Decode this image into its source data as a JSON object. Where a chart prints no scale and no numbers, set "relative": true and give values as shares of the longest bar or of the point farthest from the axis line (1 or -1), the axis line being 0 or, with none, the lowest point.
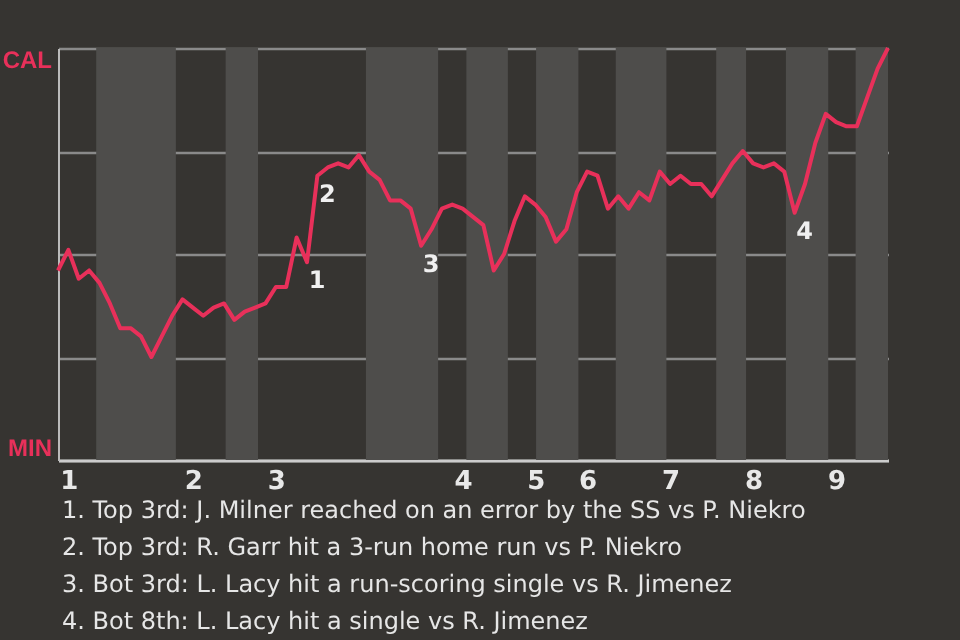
{
  "chart_data": {
    "type": "line",
    "categories": [
      null,
      "1",
      null,
      null,
      null,
      null,
      null,
      null,
      null,
      null,
      null,
      null,
      null,
      "2",
      null,
      null,
      null,
      null,
      null,
      null,
      null,
      "3",
      null,
      null,
      null,
      null,
      null,
      null,
      null,
      null,
      null,
      null,
      null,
      null,
      null,
      null,
      null,
      null,
      null,
      "4",
      null,
      null,
      null,
      null,
      null,
      null,
      "5",
      null,
      null,
      null,
      null,
      "6",
      null,
      null,
      null,
      null,
      null,
      null,
      null,
      "7",
      null,
      null,
      null,
      null,
      null,
      null,
      null,
      "8",
      null,
      null,
      null,
      null,
      null,
      null,
      null,
      "9",
      null,
      null,
      null,
      null,
      null
    ],
    "series": [
      {
        "color": "#e8305a",
        "values": [
          0.46,
          0.51,
          0.44,
          0.46,
          0.43,
          0.38,
          0.32,
          0.32,
          0.3,
          0.25,
          0.3,
          0.35,
          0.39,
          0.37,
          0.35,
          0.37,
          0.38,
          0.34,
          0.36,
          0.37,
          0.38,
          0.42,
          0.42,
          0.54,
          0.48,
          0.69,
          0.71,
          0.72,
          0.71,
          0.74,
          0.7,
          0.68,
          0.63,
          0.63,
          0.61,
          0.52,
          0.56,
          0.61,
          0.62,
          0.61,
          0.59,
          0.57,
          0.46,
          0.5,
          0.58,
          0.64,
          0.62,
          0.59,
          0.53,
          0.56,
          0.65,
          0.7,
          0.69,
          0.61,
          0.64,
          0.61,
          0.65,
          0.63,
          0.7,
          0.67,
          0.69,
          0.67,
          0.67,
          0.64,
          0.68,
          0.72,
          0.75,
          0.72,
          0.71,
          0.72,
          0.7,
          0.6,
          0.67,
          0.77,
          0.84,
          0.82,
          0.81,
          0.81,
          0.88,
          0.95,
          1.0
        ]
      }
    ],
    "relative": true,
    "grid": "y",
    "annotations": [
      "CAL",
      "MIN",
      {
        "text": "1",
        "y": 0.48
      },
      {
        "text": "2",
        "y": 0.69
      },
      {
        "text": "3",
        "y": 0.52
      },
      {
        "text": "4",
        "y": 0.6
      },
      "1. Top 3rd: J. Milner reached on an error by the SS vs P. Niekro",
      "2. Top 3rd: R. Garr hit a 3-run home run vs P. Niekro",
      "3. Bot 3rd: L. Lacy hit a run-scoring single vs R. Jimenez",
      "4. Bot 8th: L. Lacy hit a single vs R. Jimenez"
    ],
    "legend": false,
    "marker": "none",
    "line_style": "solid"
  }
}
